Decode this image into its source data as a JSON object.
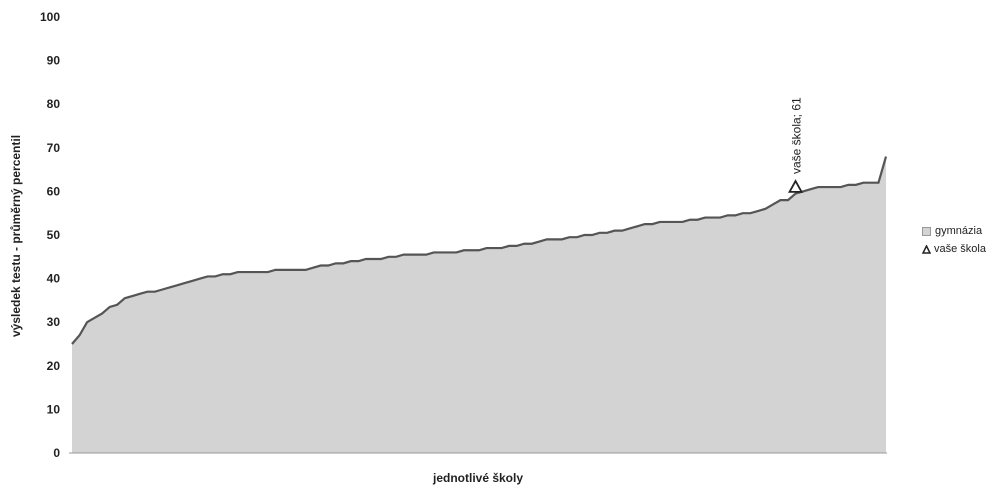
{
  "chart_data": {
    "type": "area",
    "xlabel": "jednotlivé školy",
    "ylabel": "výsledek testu - průměrný percentil",
    "ylim": [
      0,
      100
    ],
    "yticks": [
      0,
      10,
      20,
      30,
      40,
      50,
      60,
      70,
      80,
      90,
      100
    ],
    "grid": false,
    "legend_position": "right",
    "series": [
      {
        "name": "gymnázia",
        "type": "area",
        "color": "#d3d3d3",
        "line_color": "#555555",
        "values": [
          25,
          27,
          30,
          31,
          32,
          33.5,
          34,
          35.5,
          36,
          36.5,
          37,
          37,
          37.5,
          38,
          38.5,
          39,
          39.5,
          40,
          40.5,
          40.5,
          41,
          41,
          41.5,
          41.5,
          41.5,
          41.5,
          41.5,
          42,
          42,
          42,
          42,
          42,
          42.5,
          43,
          43,
          43.5,
          43.5,
          44,
          44,
          44.5,
          44.5,
          44.5,
          45,
          45,
          45.5,
          45.5,
          45.5,
          45.5,
          46,
          46,
          46,
          46,
          46.5,
          46.5,
          46.5,
          47,
          47,
          47,
          47.5,
          47.5,
          48,
          48,
          48.5,
          49,
          49,
          49,
          49.5,
          49.5,
          50,
          50,
          50.5,
          50.5,
          51,
          51,
          51.5,
          52,
          52.5,
          52.5,
          53,
          53,
          53,
          53,
          53.5,
          53.5,
          54,
          54,
          54,
          54.5,
          54.5,
          55,
          55,
          55.5,
          56,
          57,
          58,
          58,
          59.5,
          60,
          60.5,
          61,
          61,
          61,
          61,
          61.5,
          61.5,
          62,
          62,
          62,
          68
        ]
      },
      {
        "name": "vaše škola",
        "type": "scatter",
        "marker": "triangle",
        "x_index": 96,
        "value": 61
      }
    ],
    "annotations": [
      {
        "text": "vaše škola; 61"
      }
    ]
  }
}
